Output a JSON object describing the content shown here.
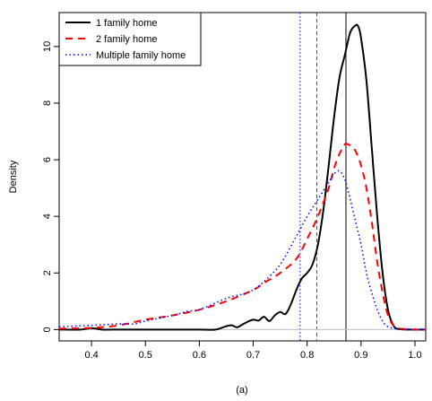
{
  "chart_data": {
    "type": "line",
    "title": "",
    "subtitle": "(a)",
    "xlabel": "",
    "ylabel": "Density",
    "xlim": [
      0.34,
      1.02
    ],
    "ylim": [
      -0.4,
      11.2
    ],
    "x_ticks": [
      0.4,
      0.5,
      0.6,
      0.7,
      0.8,
      0.9,
      1.0
    ],
    "x_tick_labels": [
      "0.4",
      "0.5",
      "0.6",
      "0.7",
      "0.8",
      "0.9",
      "1.0"
    ],
    "y_ticks": [
      0,
      2,
      4,
      6,
      8,
      10
    ],
    "y_tick_labels": [
      "0",
      "2",
      "4",
      "6",
      "8",
      "10"
    ],
    "baseline": 0,
    "baseline_color": "#bebebe",
    "grid": false,
    "legend_position": "top-left",
    "series": [
      {
        "name": "1 family home",
        "color": "#000000",
        "dash": "solid",
        "mean_line": 0.872,
        "x": [
          0.34,
          0.38,
          0.4,
          0.42,
          0.44,
          0.5,
          0.55,
          0.6,
          0.63,
          0.65,
          0.66,
          0.67,
          0.68,
          0.69,
          0.7,
          0.71,
          0.72,
          0.73,
          0.74,
          0.75,
          0.76,
          0.77,
          0.78,
          0.79,
          0.8,
          0.81,
          0.82,
          0.83,
          0.84,
          0.85,
          0.86,
          0.87,
          0.88,
          0.89,
          0.895,
          0.9,
          0.91,
          0.92,
          0.93,
          0.94,
          0.95,
          0.96,
          0.97,
          1.0,
          1.02
        ],
        "y": [
          0,
          0,
          0.05,
          0,
          0,
          0,
          0,
          0,
          0,
          0.12,
          0.15,
          0.08,
          0.18,
          0.28,
          0.35,
          0.32,
          0.45,
          0.3,
          0.5,
          0.62,
          0.55,
          0.9,
          1.4,
          1.8,
          2.0,
          2.3,
          3.0,
          4.2,
          5.8,
          7.5,
          8.9,
          9.7,
          10.5,
          10.75,
          10.7,
          10.3,
          8.8,
          6.4,
          4.0,
          2.0,
          0.7,
          0.15,
          0.02,
          0,
          0
        ]
      },
      {
        "name": "2 family home",
        "color": "#ff0000",
        "dash": "8,6",
        "mean_line": 0.818,
        "x": [
          0.34,
          0.4,
          0.45,
          0.5,
          0.55,
          0.6,
          0.65,
          0.7,
          0.72,
          0.75,
          0.78,
          0.8,
          0.82,
          0.84,
          0.85,
          0.86,
          0.87,
          0.88,
          0.89,
          0.9,
          0.91,
          0.92,
          0.93,
          0.94,
          0.95,
          0.96,
          0.97,
          1.0,
          1.02
        ],
        "y": [
          0.03,
          0.06,
          0.15,
          0.35,
          0.5,
          0.7,
          1.0,
          1.4,
          1.65,
          2.0,
          2.5,
          3.2,
          4.0,
          5.0,
          5.7,
          6.2,
          6.55,
          6.5,
          6.3,
          5.8,
          5.0,
          3.8,
          2.4,
          1.3,
          0.5,
          0.15,
          0.04,
          0,
          0
        ]
      },
      {
        "name": "Multiple family home",
        "color": "#0000ff",
        "dash": "1.5,3",
        "mean_line": 0.787,
        "x": [
          0.34,
          0.4,
          0.45,
          0.48,
          0.5,
          0.55,
          0.58,
          0.6,
          0.65,
          0.68,
          0.7,
          0.72,
          0.75,
          0.78,
          0.8,
          0.82,
          0.84,
          0.85,
          0.86,
          0.87,
          0.88,
          0.89,
          0.9,
          0.91,
          0.92,
          0.93,
          0.94,
          0.95,
          0.97,
          1.0,
          1.02
        ],
        "y": [
          0.1,
          0.15,
          0.2,
          0.2,
          0.3,
          0.5,
          0.65,
          0.7,
          1.1,
          1.25,
          1.4,
          1.7,
          2.3,
          3.3,
          4.0,
          4.6,
          5.2,
          5.5,
          5.6,
          5.3,
          4.6,
          3.8,
          3.0,
          2.0,
          1.3,
          0.7,
          0.3,
          0.1,
          0.02,
          0,
          0
        ]
      }
    ]
  }
}
